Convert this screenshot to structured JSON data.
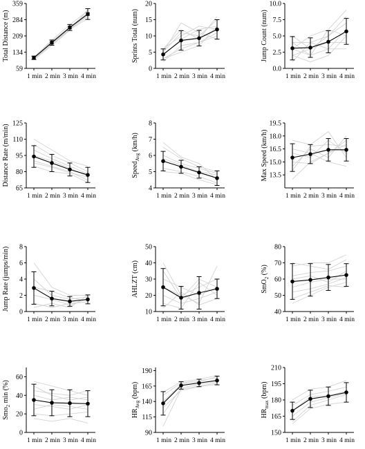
{
  "chart_data": [
    {
      "type": "line",
      "ylabel": "Total Distance (m)",
      "categories": [
        "1 min",
        "2 min",
        "3 min",
        "4 min"
      ],
      "yticks": [
        "59",
        "134",
        "209",
        "284",
        "359"
      ],
      "ylim": [
        59,
        359
      ],
      "mean": [
        108,
        178,
        248,
        310
      ],
      "sd": [
        8,
        12,
        14,
        25
      ],
      "individuals": [
        [
          99,
          165,
          235,
          330
        ],
        [
          105,
          175,
          240,
          300
        ],
        [
          110,
          190,
          260,
          325
        ],
        [
          112,
          185,
          250,
          315
        ],
        [
          103,
          170,
          238,
          290
        ],
        [
          108,
          180,
          245,
          305
        ]
      ]
    },
    {
      "type": "line",
      "ylabel": "Sprints Total (num)",
      "categories": [
        "1 min",
        "2 min",
        "3 min",
        "4 min"
      ],
      "yticks": [
        "0",
        "5",
        "10",
        "15",
        "20"
      ],
      "ylim": [
        0,
        20
      ],
      "mean": [
        4.3,
        8.6,
        9.3,
        12.0
      ],
      "sd": [
        1.7,
        3.0,
        2.4,
        3.0
      ],
      "individuals": [
        [
          3,
          6,
          8,
          10
        ],
        [
          5,
          11,
          10,
          15
        ],
        [
          4,
          9,
          12,
          13
        ],
        [
          6,
          12,
          9,
          16
        ],
        [
          2,
          7,
          8,
          11
        ],
        [
          5,
          14,
          11,
          9
        ],
        [
          3,
          5,
          7,
          13
        ],
        [
          6,
          10,
          13,
          12
        ]
      ]
    },
    {
      "type": "line",
      "ylabel": "Jump Count (num)",
      "categories": [
        "1 min",
        "2 min",
        "3 min",
        "4 min"
      ],
      "yticks": [
        "0.0",
        "2.5",
        "5.0",
        "7.5",
        "10.0"
      ],
      "ylim": [
        0,
        10
      ],
      "mean": [
        3.1,
        3.2,
        4.1,
        5.7
      ],
      "sd": [
        1.8,
        1.5,
        1.7,
        2.0
      ],
      "individuals": [
        [
          2,
          3,
          5,
          7
        ],
        [
          4,
          2,
          3,
          6
        ],
        [
          1,
          4,
          5,
          8
        ],
        [
          5,
          3,
          4,
          4
        ],
        [
          3,
          5,
          6,
          9
        ],
        [
          2,
          1,
          2,
          5
        ],
        [
          4,
          4,
          3,
          3
        ],
        [
          3,
          2,
          6,
          5
        ]
      ]
    },
    {
      "type": "line",
      "ylabel": "Distance Rate (m/min)",
      "categories": [
        "1 min",
        "2 min",
        "3 min",
        "4 min"
      ],
      "yticks": [
        "65",
        "80",
        "95",
        "110",
        "125"
      ],
      "ylim": [
        65,
        125
      ],
      "mean": [
        94,
        88,
        82,
        77
      ],
      "sd": [
        10,
        8,
        6,
        7
      ],
      "individuals": [
        [
          100,
          92,
          85,
          78
        ],
        [
          105,
          95,
          88,
          80
        ],
        [
          90,
          85,
          80,
          72
        ],
        [
          85,
          80,
          78,
          70
        ],
        [
          110,
          100,
          90,
          85
        ],
        [
          95,
          90,
          83,
          76
        ],
        [
          88,
          84,
          79,
          75
        ]
      ]
    },
    {
      "type": "line",
      "ylabel": "Speed_Avg (km/h)",
      "ylabel_main": "Speed",
      "ylabel_sub": "Avg",
      "ylabel_rest": " (km/h)",
      "categories": [
        "1 min",
        "2 min",
        "3 min",
        "4 min"
      ],
      "yticks": [
        "4",
        "5",
        "6",
        "7",
        "8"
      ],
      "ylim": [
        4,
        8
      ],
      "mean": [
        5.65,
        5.3,
        4.95,
        4.6
      ],
      "sd": [
        0.6,
        0.4,
        0.35,
        0.45
      ],
      "individuals": [
        [
          6.5,
          5.8,
          5.3,
          5.0
        ],
        [
          5.2,
          5.0,
          4.7,
          4.3
        ],
        [
          6.0,
          5.5,
          5.2,
          4.9
        ],
        [
          5.0,
          4.9,
          4.5,
          4.2
        ],
        [
          5.8,
          5.4,
          5.0,
          4.8
        ],
        [
          6.8,
          5.9,
          5.5,
          4.5
        ]
      ]
    },
    {
      "type": "line",
      "ylabel": "Max Speed (km/h)",
      "categories": [
        "1 min",
        "2 min",
        "3 min",
        "4 min"
      ],
      "yticks": [
        "13.5",
        "15.0",
        "16.5",
        "18.0",
        "19.5"
      ],
      "ylim": [
        12.0,
        19.5
      ],
      "mean": [
        15.5,
        15.9,
        16.4,
        16.4
      ],
      "sd": [
        1.6,
        1.1,
        1.3,
        1.3
      ],
      "individuals": [
        [
          13.0,
          15.0,
          16.0,
          17.0
        ],
        [
          14.5,
          16.5,
          15.5,
          18.0
        ],
        [
          16.0,
          15.5,
          17.5,
          16.0
        ],
        [
          17.5,
          17.0,
          18.5,
          15.5
        ],
        [
          15.0,
          14.8,
          16.0,
          17.5
        ],
        [
          16.5,
          16.0,
          15.0,
          14.5
        ],
        [
          14.0,
          16.8,
          17.0,
          16.8
        ]
      ]
    },
    {
      "type": "line",
      "ylabel": "Jump Rate (jumps/min)",
      "categories": [
        "1 min",
        "2 min",
        "3 min",
        "4 min"
      ],
      "yticks": [
        "0",
        "2",
        "4",
        "6",
        "8"
      ],
      "ylim": [
        0,
        8
      ],
      "mean": [
        2.9,
        1.6,
        1.25,
        1.5
      ],
      "sd": [
        2.0,
        0.9,
        0.6,
        0.55
      ],
      "individuals": [
        [
          6,
          3,
          2,
          2
        ],
        [
          4,
          2,
          1.5,
          1.8
        ],
        [
          1,
          0.5,
          1,
          1.2
        ],
        [
          2,
          1.5,
          0.8,
          1.5
        ],
        [
          3,
          2.5,
          1.7,
          1.3
        ],
        [
          0.5,
          1,
          0.5,
          2
        ]
      ]
    },
    {
      "type": "line",
      "ylabel": "AHLZT (cm)",
      "categories": [
        "1 min",
        "2 min",
        "3 min",
        "4 min"
      ],
      "yticks": [
        "10",
        "20",
        "30",
        "40",
        "50"
      ],
      "ylim": [
        10,
        50
      ],
      "mean": [
        25,
        18.5,
        21.5,
        24
      ],
      "sd": [
        11.5,
        7,
        10,
        6
      ],
      "individuals": [
        [
          40,
          20,
          25,
          30
        ],
        [
          20,
          15,
          18,
          22
        ],
        [
          30,
          25,
          20,
          25
        ],
        [
          15,
          12,
          28,
          20
        ],
        [
          25,
          20,
          15,
          38
        ],
        [
          35,
          18,
          30,
          25
        ],
        [
          12,
          22,
          14,
          18
        ]
      ]
    },
    {
      "type": "line",
      "ylabel": "SmO_2 (%)",
      "ylabel_main": "SmO",
      "ylabel_sub": "2",
      "ylabel_rest": " (%)",
      "categories": [
        "1 min",
        "2 min",
        "3 min",
        "4 min"
      ],
      "yticks": [
        "40",
        "50",
        "60",
        "70",
        "80"
      ],
      "ylim": [
        40,
        80
      ],
      "mean": [
        58.5,
        59.5,
        61,
        62.5
      ],
      "sd": [
        11,
        10,
        8,
        7
      ],
      "individuals": [
        [
          70,
          68,
          66,
          72
        ],
        [
          55,
          58,
          60,
          60
        ],
        [
          45,
          50,
          55,
          58
        ],
        [
          62,
          64,
          65,
          68
        ],
        [
          48,
          52,
          56,
          55
        ],
        [
          68,
          70,
          70,
          75
        ],
        [
          60,
          62,
          58,
          65
        ],
        [
          52,
          54,
          57,
          61
        ]
      ]
    },
    {
      "type": "line",
      "ylabel": "Smo_2 min (%)",
      "ylabel_main": "Smo",
      "ylabel_sub": "2",
      "ylabel_rest": " min (%)",
      "categories": [
        "1 min",
        "2 min",
        "3 min",
        "4 min"
      ],
      "yticks": [
        "0",
        "20",
        "40",
        "60"
      ],
      "ylim": [
        0,
        70
      ],
      "mean": [
        35,
        32,
        31.5,
        31
      ],
      "sd": [
        17,
        14,
        14.5,
        14
      ],
      "individuals": [
        [
          55,
          50,
          45,
          40
        ],
        [
          40,
          35,
          38,
          35
        ],
        [
          30,
          28,
          25,
          30
        ],
        [
          20,
          18,
          20,
          22
        ],
        [
          15,
          12,
          15,
          10
        ],
        [
          45,
          42,
          40,
          45
        ],
        [
          25,
          30,
          28,
          25
        ],
        [
          50,
          40,
          35,
          38
        ]
      ]
    },
    {
      "type": "line",
      "ylabel": "HR_Avg (bpm)",
      "ylabel_main": "HR",
      "ylabel_sub": "Avg",
      "ylabel_rest": " (bpm)",
      "categories": [
        "1 min",
        "2 min",
        "3 min",
        "4 min"
      ],
      "yticks": [
        "90",
        "115",
        "140",
        "165",
        "190"
      ],
      "ylim": [
        90,
        195
      ],
      "mean": [
        137,
        166,
        170,
        174
      ],
      "sd": [
        19,
        6,
        6,
        7
      ],
      "individuals": [
        [
          100,
          160,
          165,
          170
        ],
        [
          150,
          170,
          174,
          178
        ],
        [
          120,
          162,
          168,
          172
        ],
        [
          140,
          168,
          172,
          180
        ],
        [
          155,
          172,
          176,
          182
        ],
        [
          130,
          158,
          164,
          168
        ]
      ]
    },
    {
      "type": "line",
      "ylabel": "HR_max (bpm)",
      "ylabel_main": "HR",
      "ylabel_sub": "max",
      "ylabel_rest": " (bpm)",
      "categories": [
        "1 min",
        "2 min",
        "3 min",
        "4 min"
      ],
      "yticks": [
        "150",
        "165",
        "180",
        "195",
        "210"
      ],
      "ylim": [
        150,
        210
      ],
      "mean": [
        170,
        181,
        183.5,
        187
      ],
      "sd": [
        8,
        8,
        8.5,
        9
      ],
      "individuals": [
        [
          160,
          175,
          180,
          185
        ],
        [
          175,
          185,
          188,
          192
        ],
        [
          165,
          178,
          182,
          186
        ],
        [
          170,
          183,
          184,
          188
        ],
        [
          180,
          190,
          192,
          198
        ],
        [
          158,
          172,
          176,
          178
        ]
      ]
    }
  ]
}
